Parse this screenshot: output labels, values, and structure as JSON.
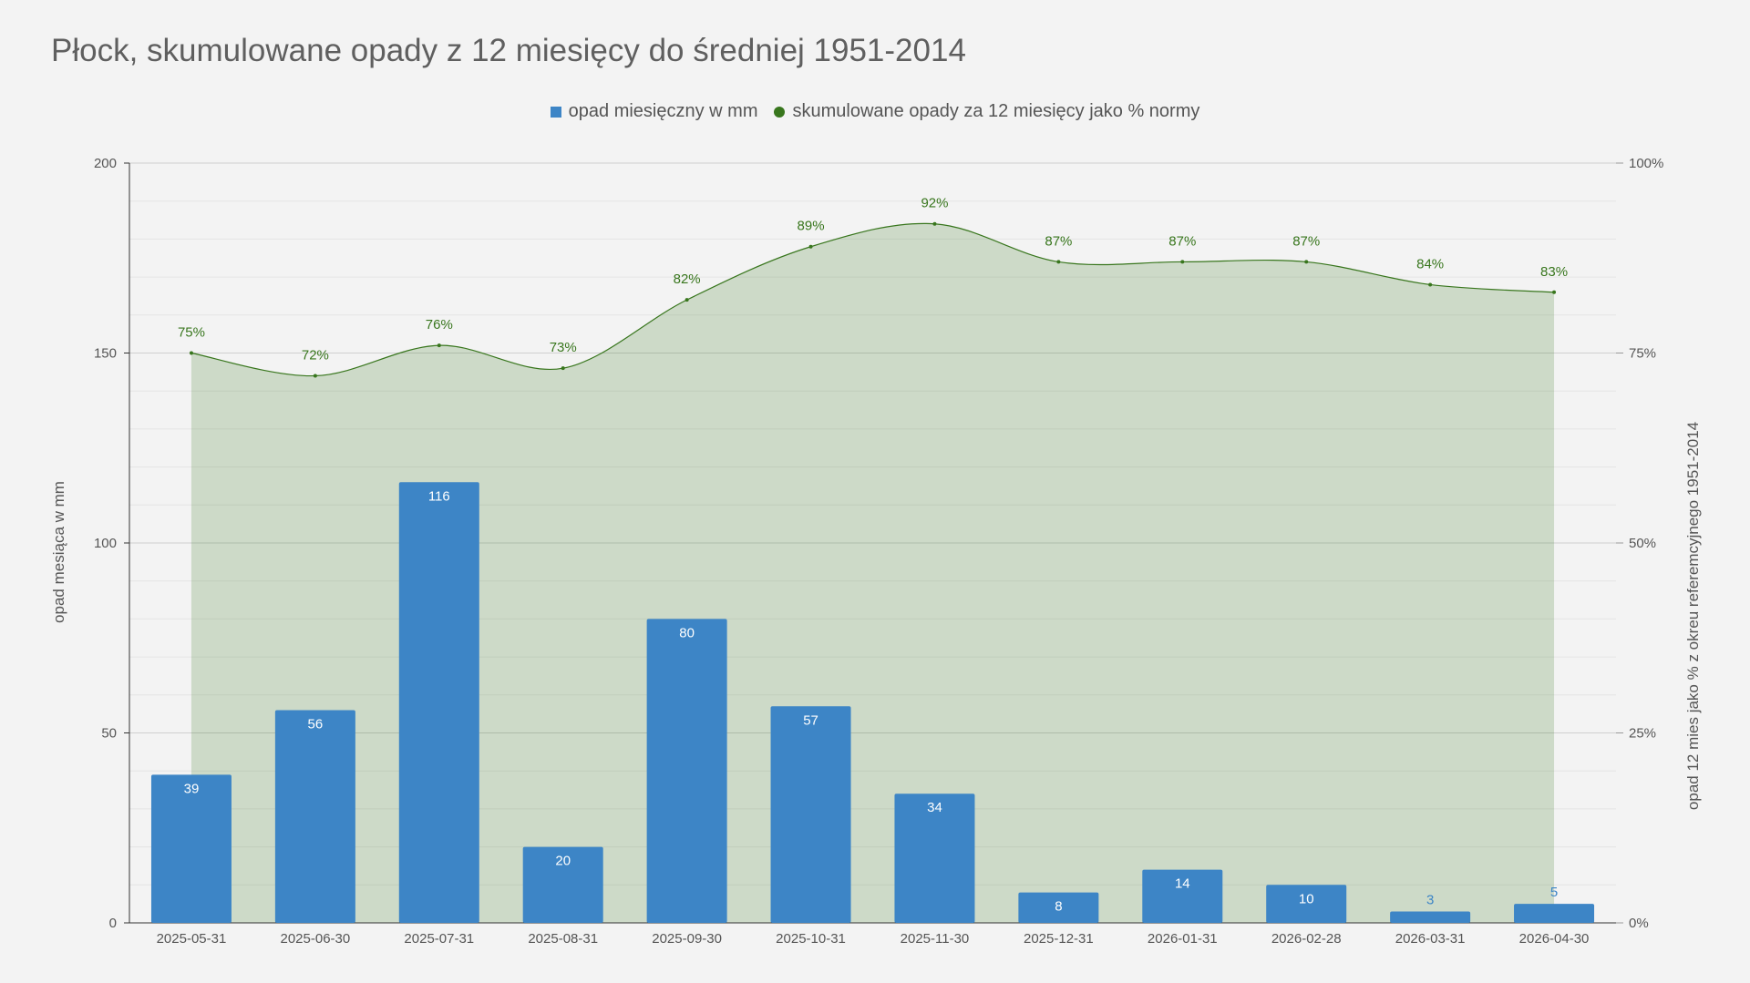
{
  "chart_data": {
    "type": "bar",
    "title": "Płock, skumulowane opady z 12 miesięcy do średniej 1951-2014",
    "categories": [
      "2025-05-31",
      "2025-06-30",
      "2025-07-31",
      "2025-08-31",
      "2025-09-30",
      "2025-10-31",
      "2025-11-30",
      "2025-12-31",
      "2026-01-31",
      "2026-02-28",
      "2026-03-31",
      "2026-04-30"
    ],
    "series": [
      {
        "name": "opad miesięczny w mm",
        "type": "bar",
        "axis": "left",
        "color": "#3d85c6",
        "values": [
          39,
          56,
          116,
          20,
          80,
          57,
          34,
          8,
          14,
          10,
          3,
          5
        ],
        "labels": [
          "39",
          "56",
          "116",
          "20",
          "80",
          "57",
          "34",
          "8",
          "14",
          "10",
          "3",
          "5"
        ]
      },
      {
        "name": "skumulowane opady za 12 miesięcy jako % normy",
        "type": "area",
        "axis": "right",
        "color": "#38761d",
        "values": [
          75,
          72,
          76,
          73,
          82,
          89,
          92,
          87,
          87,
          87,
          84,
          83
        ],
        "labels": [
          "75%",
          "72%",
          "76%",
          "73%",
          "82%",
          "89%",
          "92%",
          "87%",
          "87%",
          "87%",
          "84%",
          "83%"
        ]
      }
    ],
    "ylabel": "opad mesiąca w mm",
    "ylabel_right": "opad 12 mies jako % z okreu referemcyjnego 1951-2014",
    "ylim": [
      0,
      200
    ],
    "ylim_right": [
      0,
      100
    ],
    "yticks": [
      "0",
      "50",
      "100",
      "150",
      "200"
    ],
    "yticks_right": [
      "0%",
      "25%",
      "50%",
      "75%",
      "100%"
    ],
    "grid": true,
    "legend_position": "top"
  }
}
